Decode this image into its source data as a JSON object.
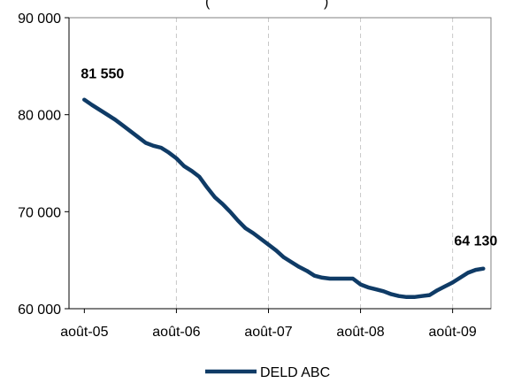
{
  "chart_data": {
    "type": "line",
    "title": "(",
    "title_end": ")",
    "xlabel": "",
    "ylabel": "",
    "ylim": [
      60000,
      90000
    ],
    "yticks": [
      60000,
      70000,
      80000,
      90000
    ],
    "ytick_labels": [
      "60 000",
      "70 000",
      "80 000",
      "90 000"
    ],
    "xticks": [
      "2005-08",
      "2006-08",
      "2007-08",
      "2008-08",
      "2009-08"
    ],
    "xtick_labels": [
      "août-05",
      "août-06",
      "août-07",
      "août-08",
      "août-09"
    ],
    "grid": "vertical dashed at each x tick",
    "legend_position": "bottom",
    "colors": {
      "series": "#0f3b66",
      "grid": "#c8c8c8",
      "axis": "#000000"
    },
    "series": [
      {
        "name": "DELD ABC",
        "points": [
          [
            "2005-08",
            81550
          ],
          [
            "2005-09",
            81000
          ],
          [
            "2005-10",
            80500
          ],
          [
            "2005-11",
            80000
          ],
          [
            "2005-12",
            79500
          ],
          [
            "2006-01",
            78900
          ],
          [
            "2006-02",
            78300
          ],
          [
            "2006-03",
            77700
          ],
          [
            "2006-04",
            77100
          ],
          [
            "2006-05",
            76800
          ],
          [
            "2006-06",
            76600
          ],
          [
            "2006-07",
            76100
          ],
          [
            "2006-08",
            75500
          ],
          [
            "2006-09",
            74700
          ],
          [
            "2006-10",
            74200
          ],
          [
            "2006-11",
            73600
          ],
          [
            "2006-12",
            72500
          ],
          [
            "2007-01",
            71500
          ],
          [
            "2007-02",
            70800
          ],
          [
            "2007-03",
            70000
          ],
          [
            "2007-04",
            69100
          ],
          [
            "2007-05",
            68300
          ],
          [
            "2007-06",
            67800
          ],
          [
            "2007-07",
            67200
          ],
          [
            "2007-08",
            66600
          ],
          [
            "2007-09",
            66000
          ],
          [
            "2007-10",
            65300
          ],
          [
            "2007-11",
            64800
          ],
          [
            "2007-12",
            64300
          ],
          [
            "2008-01",
            63900
          ],
          [
            "2008-02",
            63400
          ],
          [
            "2008-03",
            63200
          ],
          [
            "2008-04",
            63100
          ],
          [
            "2008-05",
            63100
          ],
          [
            "2008-06",
            63100
          ],
          [
            "2008-07",
            63100
          ],
          [
            "2008-08",
            62500
          ],
          [
            "2008-09",
            62200
          ],
          [
            "2008-10",
            62000
          ],
          [
            "2008-11",
            61800
          ],
          [
            "2008-12",
            61500
          ],
          [
            "2009-01",
            61300
          ],
          [
            "2009-02",
            61200
          ],
          [
            "2009-03",
            61200
          ],
          [
            "2009-04",
            61300
          ],
          [
            "2009-05",
            61400
          ],
          [
            "2009-06",
            61900
          ],
          [
            "2009-07",
            62300
          ],
          [
            "2009-08",
            62700
          ],
          [
            "2009-09",
            63200
          ],
          [
            "2009-10",
            63700
          ],
          [
            "2009-11",
            64000
          ],
          [
            "2009-12",
            64130
          ]
        ]
      }
    ],
    "annotations": [
      {
        "text": "81 550",
        "at": "first"
      },
      {
        "text": "64 130",
        "at": "last"
      }
    ]
  }
}
